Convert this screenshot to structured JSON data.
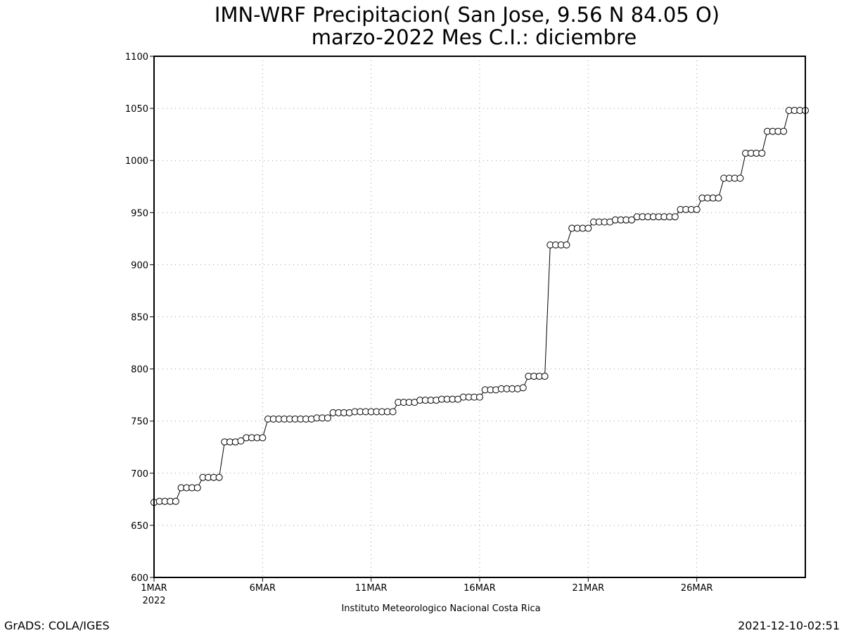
{
  "chart_data": {
    "type": "line",
    "title_line1": "IMN-WRF  Precipitacion( San Jose, 9.56  N 84.05  O)",
    "title_line2": "marzo-2022 Mes C.I.: diciembre",
    "xlabel": "Instituto Meteorologico Nacional Costa Rica",
    "ylabel": "",
    "ylim": [
      600,
      1100
    ],
    "yticks": [
      "600",
      "650",
      "700",
      "750",
      "800",
      "850",
      "900",
      "950",
      "1000",
      "1050",
      "1100"
    ],
    "xlim": [
      1,
      31
    ],
    "xticks": [
      {
        "label": "1MAR",
        "sublabel": "2022"
      },
      {
        "label": "6MAR",
        "sublabel": ""
      },
      {
        "label": "11MAR",
        "sublabel": ""
      },
      {
        "label": "16MAR",
        "sublabel": ""
      },
      {
        "label": "21MAR",
        "sublabel": ""
      },
      {
        "label": "26MAR",
        "sublabel": ""
      }
    ],
    "grid": true,
    "marker": "open-circle",
    "x_unit": "day of March 2022 (6-hourly steps)",
    "x": [
      1.0,
      1.25,
      1.5,
      1.75,
      2.0,
      2.25,
      2.5,
      2.75,
      3.0,
      3.25,
      3.5,
      3.75,
      4.0,
      4.25,
      4.5,
      4.75,
      5.0,
      5.25,
      5.5,
      5.75,
      6.0,
      6.25,
      6.5,
      6.75,
      7.0,
      7.25,
      7.5,
      7.75,
      8.0,
      8.25,
      8.5,
      8.75,
      9.0,
      9.25,
      9.5,
      9.75,
      10.0,
      10.25,
      10.5,
      10.75,
      11.0,
      11.25,
      11.5,
      11.75,
      12.0,
      12.25,
      12.5,
      12.75,
      13.0,
      13.25,
      13.5,
      13.75,
      14.0,
      14.25,
      14.5,
      14.75,
      15.0,
      15.25,
      15.5,
      15.75,
      16.0,
      16.25,
      16.5,
      16.75,
      17.0,
      17.25,
      17.5,
      17.75,
      18.0,
      18.25,
      18.5,
      18.75,
      19.0,
      19.25,
      19.5,
      19.75,
      20.0,
      20.25,
      20.5,
      20.75,
      21.0,
      21.25,
      21.5,
      21.75,
      22.0,
      22.25,
      22.5,
      22.75,
      23.0,
      23.25,
      23.5,
      23.75,
      24.0,
      24.25,
      24.5,
      24.75,
      25.0,
      25.25,
      25.5,
      25.75,
      26.0,
      26.25,
      26.5,
      26.75,
      27.0,
      27.25,
      27.5,
      27.75,
      28.0,
      28.25,
      28.5,
      28.75,
      29.0,
      29.25,
      29.5,
      29.75,
      30.0,
      30.25,
      30.5,
      30.75,
      31.0
    ],
    "values": [
      672,
      673,
      673,
      673,
      673,
      686,
      686,
      686,
      686,
      696,
      696,
      696,
      696,
      730,
      730,
      730,
      731,
      734,
      734,
      734,
      734,
      752,
      752,
      752,
      752,
      752,
      752,
      752,
      752,
      752,
      753,
      753,
      753,
      758,
      758,
      758,
      758,
      759,
      759,
      759,
      759,
      759,
      759,
      759,
      759,
      768,
      768,
      768,
      768,
      770,
      770,
      770,
      770,
      771,
      771,
      771,
      771,
      773,
      773,
      773,
      773,
      780,
      780,
      780,
      781,
      781,
      781,
      781,
      782,
      793,
      793,
      793,
      793,
      919,
      919,
      919,
      919,
      935,
      935,
      935,
      935,
      941,
      941,
      941,
      941,
      943,
      943,
      943,
      943,
      946,
      946,
      946,
      946,
      946,
      946,
      946,
      946,
      953,
      953,
      953,
      953,
      964,
      964,
      964,
      964,
      983,
      983,
      983,
      983,
      1007,
      1007,
      1007,
      1007,
      1028,
      1028,
      1028,
      1028,
      1048,
      1048,
      1048,
      1048
    ]
  },
  "footer": {
    "left": "GrADS: COLA/IGES",
    "right": "2021-12-10-02:51"
  }
}
